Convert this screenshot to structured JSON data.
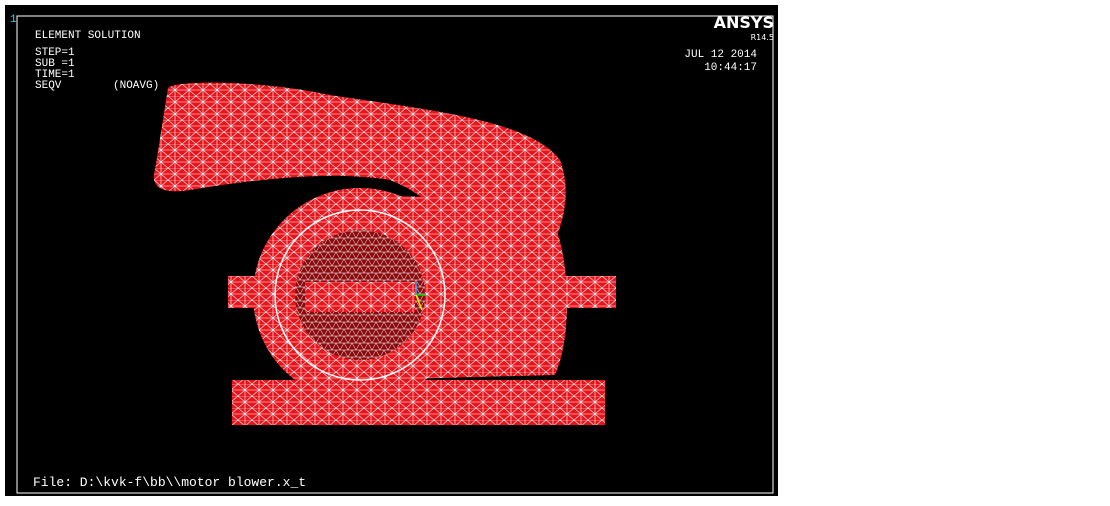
{
  "window_number": "1",
  "header": {
    "title": "ELEMENT SOLUTION",
    "step": "STEP=1",
    "sub": "SUB =1",
    "time": "TIME=1",
    "quantity": "SEQV",
    "averaging": "(NOAVG)"
  },
  "brand": {
    "name": "ANSYS",
    "version": "R14.5"
  },
  "timestamp": {
    "date": "JUL 12 2014",
    "time": "10:44:17"
  },
  "file": "File: D:\\kvk-f\\bb\\\\motor blower.x_t"
}
